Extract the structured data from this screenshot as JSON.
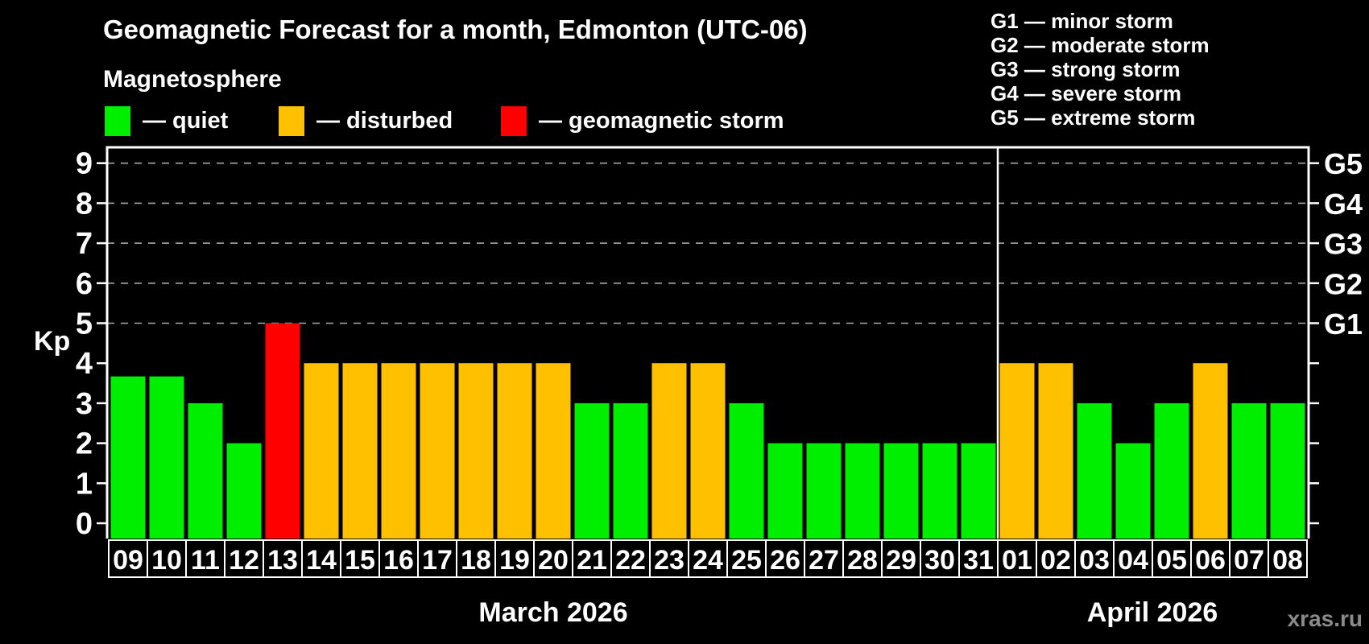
{
  "header": {
    "title": "Geomagnetic Forecast for a month, Edmonton (UTC-06)",
    "subtitle": "Magnetosphere"
  },
  "condition_legend": {
    "items": [
      {
        "key": "quiet",
        "label": "— quiet",
        "color": "#00ee00"
      },
      {
        "key": "disturbed",
        "label": "— disturbed",
        "color": "#ffc000"
      },
      {
        "key": "storm",
        "label": "— geomagnetic storm",
        "color": "#ff0000"
      }
    ]
  },
  "storm_scale_legend": {
    "lines": [
      "G1 — minor storm",
      "G2 — moderate storm",
      "G3 — strong storm",
      "G4 — severe storm",
      "G5 — extreme storm"
    ]
  },
  "watermark": "xras.ru",
  "chart_data": {
    "type": "bar",
    "title": "Geomagnetic Forecast for a month, Edmonton (UTC-06)",
    "xlabel": "",
    "ylabel": "Kp",
    "ylim": [
      0,
      9
    ],
    "yticks": [
      0,
      1,
      2,
      3,
      4,
      5,
      6,
      7,
      8,
      9
    ],
    "grid": "horizontal dashed lines at Kp 5-9 (storm levels)",
    "gridline_color": "#a8a8a8",
    "frame_color": "#ffffff",
    "background_color": "#000000",
    "colors": {
      "quiet": "#00ee00",
      "disturbed": "#ffc000",
      "storm": "#ff0000"
    },
    "right_axis": [
      {
        "kp": 5,
        "label": "G1"
      },
      {
        "kp": 6,
        "label": "G2"
      },
      {
        "kp": 7,
        "label": "G3"
      },
      {
        "kp": 8,
        "label": "G4"
      },
      {
        "kp": 9,
        "label": "G5"
      }
    ],
    "months": [
      {
        "label": "March 2026",
        "days": [
          {
            "date": "09",
            "kp": 3.67,
            "condition": "quiet"
          },
          {
            "date": "10",
            "kp": 3.67,
            "condition": "quiet"
          },
          {
            "date": "11",
            "kp": 3,
            "condition": "quiet"
          },
          {
            "date": "12",
            "kp": 2,
            "condition": "quiet"
          },
          {
            "date": "13",
            "kp": 5,
            "condition": "storm"
          },
          {
            "date": "14",
            "kp": 4,
            "condition": "disturbed"
          },
          {
            "date": "15",
            "kp": 4,
            "condition": "disturbed"
          },
          {
            "date": "16",
            "kp": 4,
            "condition": "disturbed"
          },
          {
            "date": "17",
            "kp": 4,
            "condition": "disturbed"
          },
          {
            "date": "18",
            "kp": 4,
            "condition": "disturbed"
          },
          {
            "date": "19",
            "kp": 4,
            "condition": "disturbed"
          },
          {
            "date": "20",
            "kp": 4,
            "condition": "disturbed"
          },
          {
            "date": "21",
            "kp": 3,
            "condition": "quiet"
          },
          {
            "date": "22",
            "kp": 3,
            "condition": "quiet"
          },
          {
            "date": "23",
            "kp": 4,
            "condition": "disturbed"
          },
          {
            "date": "24",
            "kp": 4,
            "condition": "disturbed"
          },
          {
            "date": "25",
            "kp": 3,
            "condition": "quiet"
          },
          {
            "date": "26",
            "kp": 2,
            "condition": "quiet"
          },
          {
            "date": "27",
            "kp": 2,
            "condition": "quiet"
          },
          {
            "date": "28",
            "kp": 2,
            "condition": "quiet"
          },
          {
            "date": "29",
            "kp": 2,
            "condition": "quiet"
          },
          {
            "date": "30",
            "kp": 2,
            "condition": "quiet"
          },
          {
            "date": "31",
            "kp": 2,
            "condition": "quiet"
          }
        ]
      },
      {
        "label": "April 2026",
        "days": [
          {
            "date": "01",
            "kp": 4,
            "condition": "disturbed"
          },
          {
            "date": "02",
            "kp": 4,
            "condition": "disturbed"
          },
          {
            "date": "03",
            "kp": 3,
            "condition": "quiet"
          },
          {
            "date": "04",
            "kp": 2,
            "condition": "quiet"
          },
          {
            "date": "05",
            "kp": 3,
            "condition": "quiet"
          },
          {
            "date": "06",
            "kp": 4,
            "condition": "disturbed"
          },
          {
            "date": "07",
            "kp": 3,
            "condition": "quiet"
          },
          {
            "date": "08",
            "kp": 3,
            "condition": "quiet"
          }
        ]
      }
    ]
  }
}
